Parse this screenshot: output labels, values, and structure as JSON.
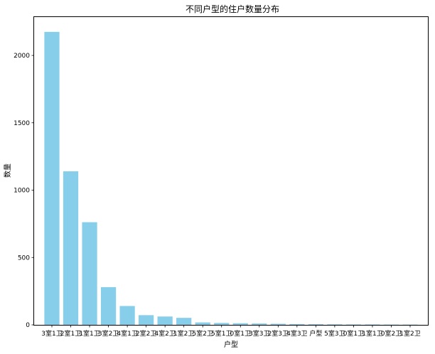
{
  "chart_data": {
    "type": "bar",
    "title": "不同户型的住户数量分布",
    "xlabel": "户型",
    "ylabel": "数量",
    "categories": [
      "3室1卫",
      "2室1卫",
      "1室1卫",
      "3室2卫",
      "4室1卫",
      "2室2卫",
      "4室2卫",
      "1室2卫",
      "5室2卫",
      "5室1卫",
      "0室1卫",
      "3室3卫",
      "2室3卫",
      "4室3卫",
      "户型",
      "5室3卫",
      "0室1卫",
      "1室1卫",
      "0室2卫",
      "1室2卫"
    ],
    "values": [
      2175,
      1140,
      762,
      280,
      140,
      72,
      62,
      52,
      18,
      14,
      12,
      10,
      8,
      6,
      5,
      4,
      3,
      3,
      2,
      2
    ],
    "yticks": [
      0,
      500,
      1000,
      1500,
      2000
    ],
    "ylim": [
      0,
      2285
    ],
    "bar_color": "#87ceeb",
    "grid": false,
    "legend": "none"
  }
}
